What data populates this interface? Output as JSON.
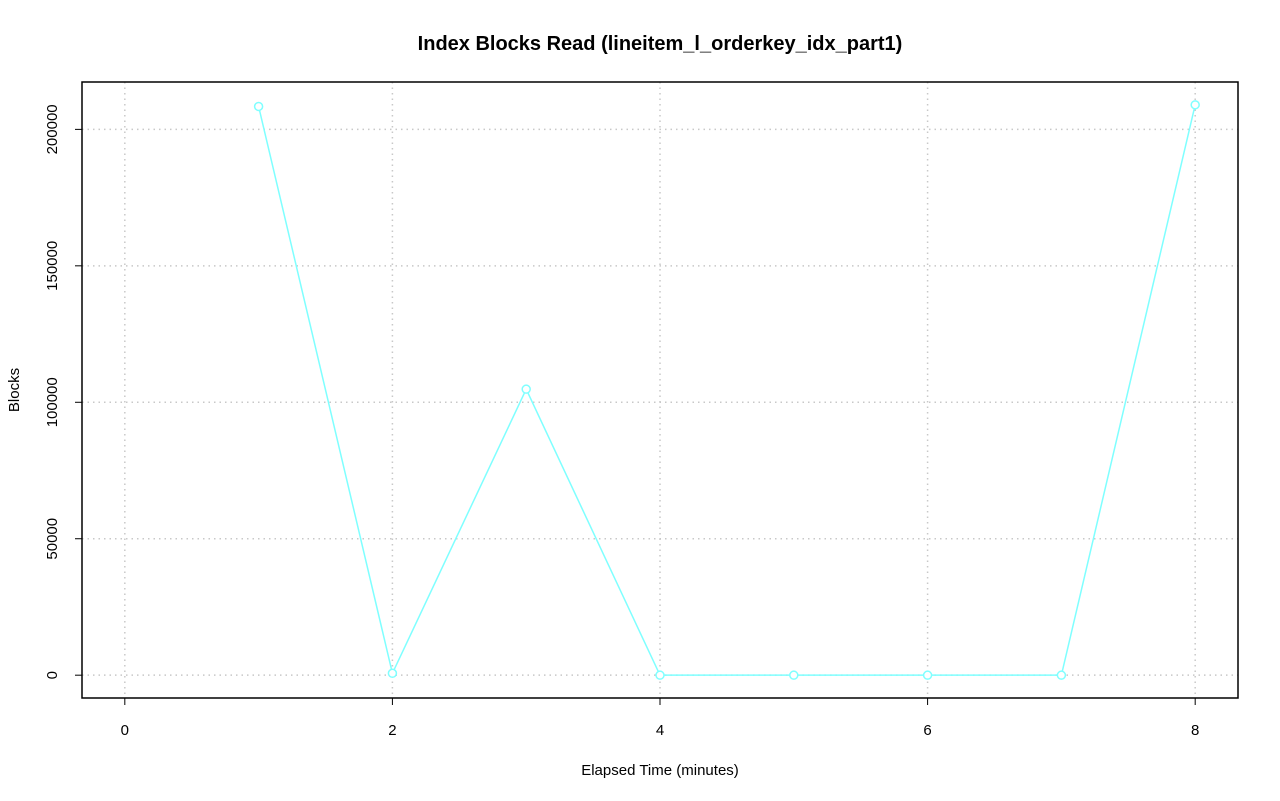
{
  "chart_data": {
    "type": "line",
    "title": "Index Blocks Read (lineitem_l_orderkey_idx_part1)",
    "x_label": "Elapsed Time (minutes)",
    "y_label": "Blocks",
    "x": [
      1,
      2,
      3,
      4,
      5,
      6,
      7,
      8
    ],
    "series": [
      {
        "name": "lineitem_l_orderkey_idx_part1",
        "color": "#7fffff",
        "values": [
          208400,
          700,
          104800,
          0,
          0,
          0,
          0,
          209000
        ]
      }
    ],
    "xlim": [
      -0.32,
      8.32
    ],
    "ylim": [
      -8360,
      217360
    ],
    "xticks": [
      0,
      2,
      4,
      6,
      8
    ],
    "yticks": [
      0,
      50000,
      100000,
      150000,
      200000
    ],
    "grid": true
  }
}
